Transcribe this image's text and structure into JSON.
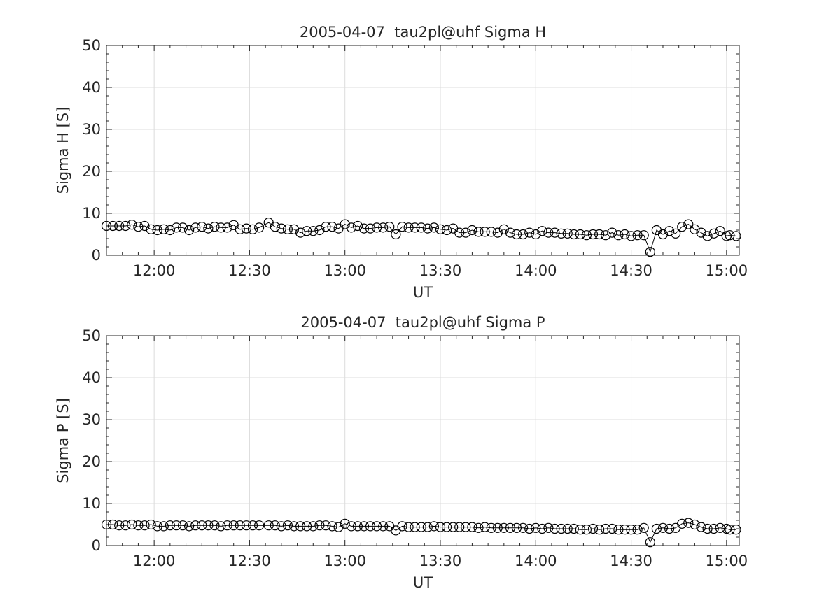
{
  "chart_data": [
    {
      "type": "line",
      "title": "2005-04-07  tau2pl@uhf Sigma H",
      "xlabel": "UT",
      "ylabel": "Sigma H [S]",
      "ylim": [
        0,
        50
      ],
      "yticks": [
        "0",
        "10",
        "20",
        "30",
        "40",
        "50"
      ],
      "xticks": [
        "12:00",
        "12:30",
        "13:00",
        "13:30",
        "14:00",
        "14:30",
        "15:00"
      ],
      "xlim": [
        "11:45",
        "15:04"
      ],
      "grid": true,
      "marker": "open-circle",
      "series": [
        {
          "x": [
            "11:45",
            "11:47",
            "11:49",
            "11:51",
            "11:53",
            "11:55",
            "11:57",
            "11:59",
            "12:01",
            "12:03",
            "12:05",
            "12:07",
            "12:09",
            "12:11",
            "12:13",
            "12:15",
            "12:17",
            "12:19",
            "12:21",
            "12:23",
            "12:25",
            "12:27",
            "12:29",
            "12:31",
            "12:33",
            "12:36",
            "12:38",
            "12:40",
            "12:42",
            "12:44",
            "12:46",
            "12:48",
            "12:50",
            "12:52",
            "12:54",
            "12:56",
            "12:58",
            "13:00",
            "13:02",
            "13:04",
            "13:06",
            "13:08",
            "13:10",
            "13:12",
            "13:14",
            "13:16",
            "13:18",
            "13:20",
            "13:22",
            "13:24",
            "13:26",
            "13:28",
            "13:30",
            "13:32",
            "13:34",
            "13:36",
            "13:38",
            "13:40",
            "13:42",
            "13:44",
            "13:46",
            "13:48",
            "13:50",
            "13:52",
            "13:54",
            "13:56",
            "13:58",
            "14:00",
            "14:02",
            "14:04",
            "14:06",
            "14:08",
            "14:10",
            "14:12",
            "14:14",
            "14:16",
            "14:18",
            "14:20",
            "14:22",
            "14:24",
            "14:26",
            "14:28",
            "14:30",
            "14:32",
            "14:34",
            "14:36",
            "14:38",
            "14:40",
            "14:42",
            "14:44",
            "14:46",
            "14:48",
            "14:50",
            "14:52",
            "14:54",
            "14:56",
            "14:58",
            "15:00",
            "15:01",
            "15:03"
          ],
          "values": [
            7.0,
            7.0,
            7.0,
            7.0,
            7.3,
            6.8,
            7.0,
            6.2,
            6.0,
            6.2,
            6.0,
            6.6,
            6.6,
            6.0,
            6.6,
            6.8,
            6.4,
            6.8,
            6.6,
            6.6,
            7.2,
            6.2,
            6.4,
            6.2,
            6.6,
            7.8,
            6.8,
            6.4,
            6.2,
            6.2,
            5.4,
            5.8,
            5.8,
            6.0,
            6.8,
            6.8,
            6.4,
            7.4,
            6.6,
            7.0,
            6.4,
            6.4,
            6.6,
            6.6,
            6.8,
            5.0,
            6.8,
            6.6,
            6.6,
            6.6,
            6.4,
            6.6,
            6.2,
            6.0,
            6.4,
            5.4,
            5.4,
            6.0,
            5.6,
            5.6,
            5.6,
            5.4,
            6.2,
            5.4,
            5.0,
            5.0,
            5.4,
            5.0,
            5.8,
            5.4,
            5.4,
            5.2,
            5.2,
            5.0,
            5.0,
            4.8,
            5.0,
            5.0,
            4.8,
            5.4,
            4.8,
            5.0,
            4.6,
            4.8,
            4.8,
            0.8,
            6.0,
            5.0,
            5.8,
            5.2,
            6.8,
            7.4,
            6.2,
            5.4,
            4.6,
            5.2,
            5.8,
            4.6,
            4.8,
            4.6
          ]
        }
      ]
    },
    {
      "type": "line",
      "title": "2005-04-07  tau2pl@uhf Sigma P",
      "xlabel": "UT",
      "ylabel": "Sigma P [S]",
      "ylim": [
        0,
        50
      ],
      "yticks": [
        "0",
        "10",
        "20",
        "30",
        "40",
        "50"
      ],
      "xticks": [
        "12:00",
        "12:30",
        "13:00",
        "13:30",
        "14:00",
        "14:30",
        "15:00"
      ],
      "xlim": [
        "11:45",
        "15:04"
      ],
      "grid": true,
      "marker": "open-circle",
      "series": [
        {
          "x": [
            "11:45",
            "11:47",
            "11:49",
            "11:51",
            "11:53",
            "11:55",
            "11:57",
            "11:59",
            "12:01",
            "12:03",
            "12:05",
            "12:07",
            "12:09",
            "12:11",
            "12:13",
            "12:15",
            "12:17",
            "12:19",
            "12:21",
            "12:23",
            "12:25",
            "12:27",
            "12:29",
            "12:31",
            "12:33",
            "12:36",
            "12:38",
            "12:40",
            "12:42",
            "12:44",
            "12:46",
            "12:48",
            "12:50",
            "12:52",
            "12:54",
            "12:56",
            "12:58",
            "13:00",
            "13:02",
            "13:04",
            "13:06",
            "13:08",
            "13:10",
            "13:12",
            "13:14",
            "13:16",
            "13:18",
            "13:20",
            "13:22",
            "13:24",
            "13:26",
            "13:28",
            "13:30",
            "13:32",
            "13:34",
            "13:36",
            "13:38",
            "13:40",
            "13:42",
            "13:44",
            "13:46",
            "13:48",
            "13:50",
            "13:52",
            "13:54",
            "13:56",
            "13:58",
            "14:00",
            "14:02",
            "14:04",
            "14:06",
            "14:08",
            "14:10",
            "14:12",
            "14:14",
            "14:16",
            "14:18",
            "14:20",
            "14:22",
            "14:24",
            "14:26",
            "14:28",
            "14:30",
            "14:32",
            "14:34",
            "14:36",
            "14:38",
            "14:40",
            "14:42",
            "14:44",
            "14:46",
            "14:48",
            "14:50",
            "14:52",
            "14:54",
            "14:56",
            "14:58",
            "15:00",
            "15:01",
            "15:03"
          ],
          "values": [
            5.0,
            5.0,
            4.8,
            4.8,
            5.0,
            4.8,
            4.8,
            5.0,
            4.6,
            4.6,
            4.8,
            4.8,
            4.8,
            4.6,
            4.8,
            4.8,
            4.8,
            4.8,
            4.6,
            4.8,
            4.8,
            4.8,
            4.8,
            4.8,
            4.8,
            4.8,
            4.8,
            4.6,
            4.8,
            4.6,
            4.6,
            4.6,
            4.6,
            4.8,
            4.8,
            4.6,
            4.4,
            5.2,
            4.6,
            4.6,
            4.6,
            4.6,
            4.6,
            4.6,
            4.6,
            3.6,
            4.6,
            4.4,
            4.4,
            4.4,
            4.4,
            4.6,
            4.4,
            4.4,
            4.4,
            4.4,
            4.4,
            4.4,
            4.2,
            4.4,
            4.2,
            4.2,
            4.2,
            4.2,
            4.2,
            4.2,
            4.0,
            4.2,
            4.0,
            4.2,
            4.0,
            4.0,
            4.0,
            4.0,
            3.8,
            3.8,
            4.0,
            3.8,
            4.0,
            4.0,
            3.8,
            3.8,
            3.8,
            3.8,
            4.2,
            0.8,
            4.0,
            4.2,
            4.0,
            4.2,
            5.2,
            5.4,
            5.0,
            4.4,
            4.0,
            4.0,
            4.2,
            4.0,
            3.8,
            3.8
          ]
        }
      ]
    }
  ]
}
